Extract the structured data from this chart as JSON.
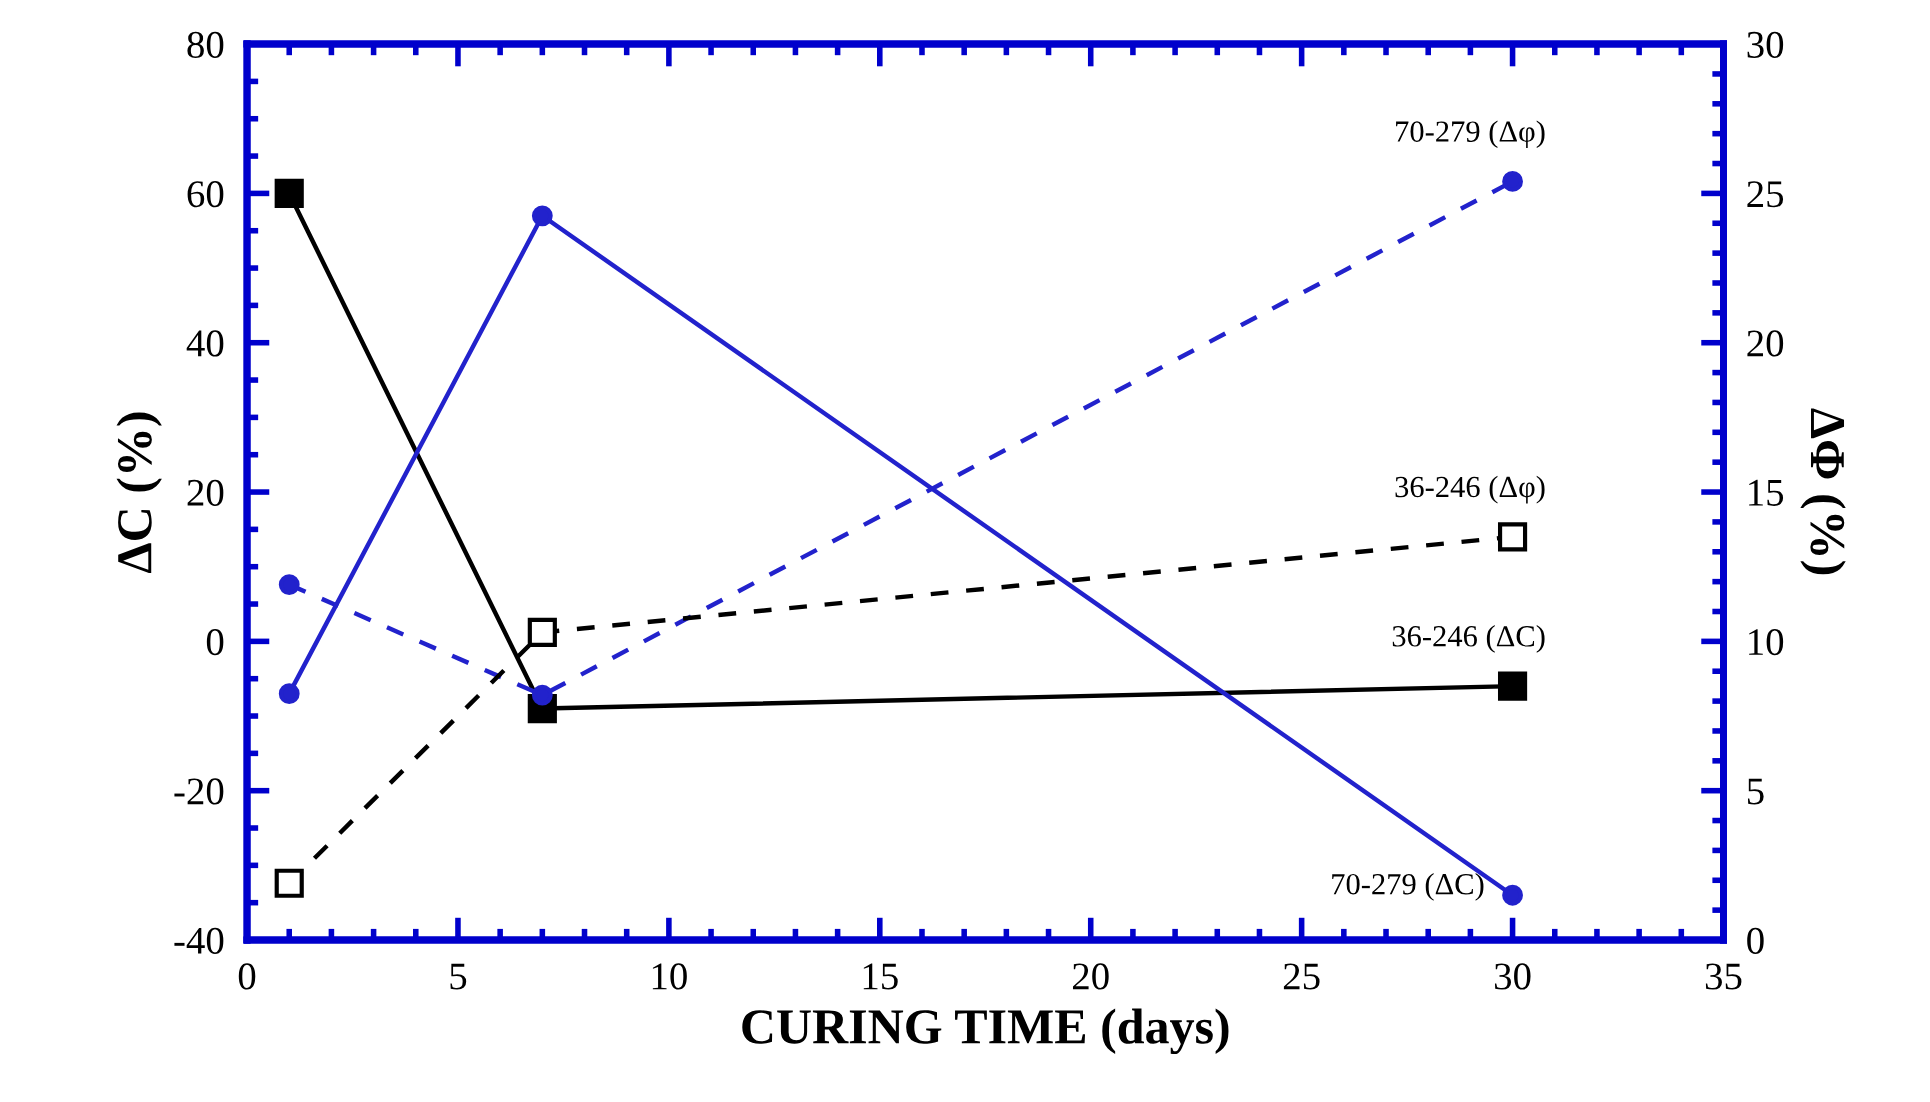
{
  "chart_data": {
    "type": "line",
    "xlabel": "CURING TIME (days)",
    "ylabel": "ΔC (%)",
    "y2label": "ΔΦ (%)",
    "xlim": [
      0,
      35
    ],
    "xticks": [
      0,
      5,
      10,
      15,
      20,
      25,
      30,
      35
    ],
    "ylim": [
      -40,
      80
    ],
    "yticks": [
      -40,
      -20,
      0,
      20,
      40,
      60,
      80
    ],
    "y2lim": [
      0,
      30
    ],
    "y2ticks": [
      0,
      5,
      10,
      15,
      20,
      25,
      30
    ],
    "grid": false,
    "legend": false,
    "series": [
      {
        "x": [
          1,
          7,
          30
        ],
        "values": [
          60,
          -9,
          -6
        ],
        "color": "#000000",
        "marker": "square",
        "line_style": "solid"
      },
      {
        "x": [
          1,
          7,
          30
        ],
        "values": [
          -7,
          57,
          -34
        ],
        "color": "#2222cc",
        "marker": "circle",
        "line_style": "solid"
      },
      {
        "x": [
          1,
          7,
          30
        ],
        "values": [
          11.9,
          8.2,
          25.4
        ],
        "color": "#2222cc",
        "marker": "circle",
        "line_style": "dashed",
        "axis": "y2"
      },
      {
        "x": [
          1,
          7,
          30
        ],
        "values": [
          1.9,
          10.3,
          13.5
        ],
        "color": "#000000",
        "marker": "square",
        "line_style": "dashed",
        "axis": "y2"
      }
    ],
    "annotations": [
      "36-246 (ΔC)",
      "70-279 (ΔC)",
      "70-279 (Δφ)",
      "36-246 (Δφ)"
    ]
  }
}
